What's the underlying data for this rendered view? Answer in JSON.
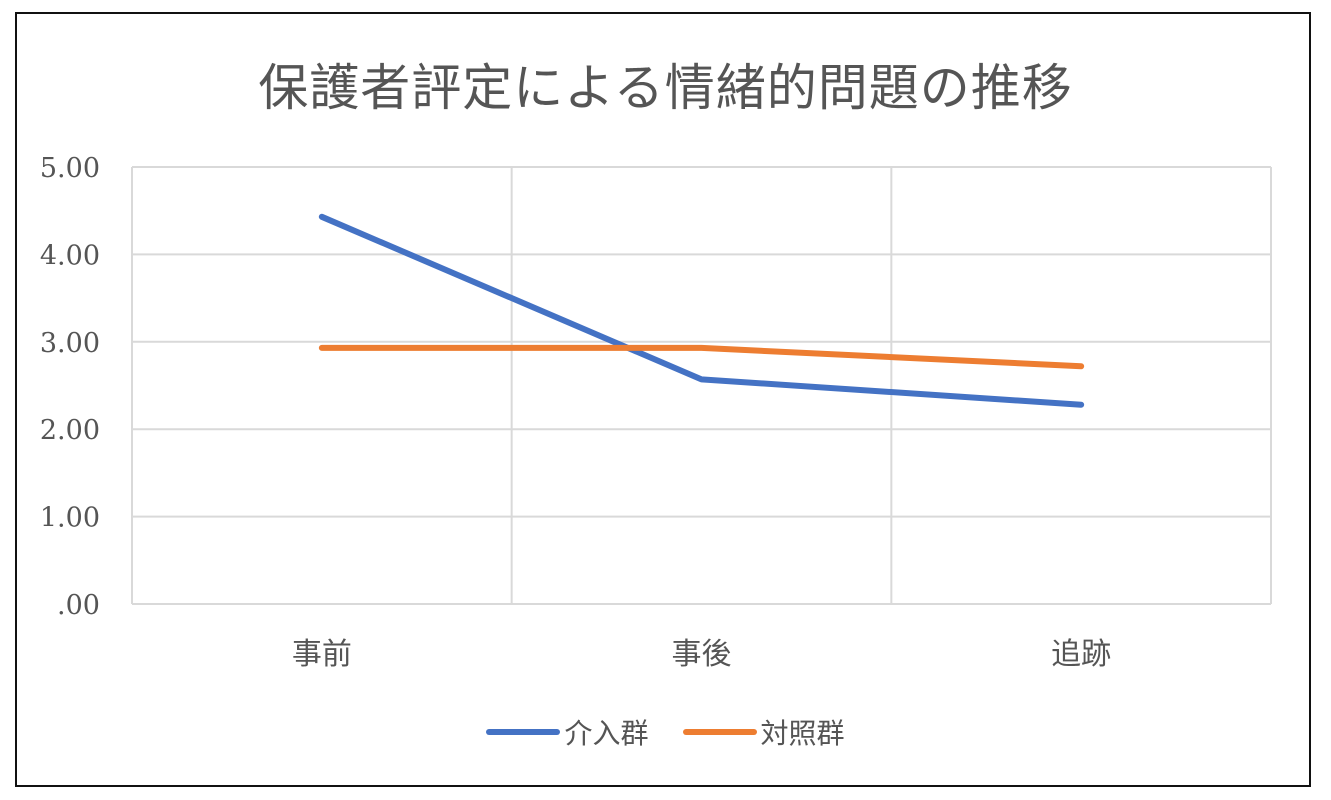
{
  "chart_data": {
    "type": "line",
    "title": "保護者評定による情緒的問題の推移",
    "categories": [
      "事前",
      "事後",
      "追跡"
    ],
    "series": [
      {
        "name": "介入群",
        "color": "#4472C4",
        "values": [
          4.43,
          2.57,
          2.28
        ]
      },
      {
        "name": "対照群",
        "color": "#ED7D31",
        "values": [
          2.93,
          2.93,
          2.72
        ]
      }
    ],
    "ylim": [
      0,
      5
    ],
    "y_ticks": [
      {
        "value": 0,
        "label": ".00"
      },
      {
        "value": 1,
        "label": "1.00"
      },
      {
        "value": 2,
        "label": "2.00"
      },
      {
        "value": 3,
        "label": "3.00"
      },
      {
        "value": 4,
        "label": "4.00"
      },
      {
        "value": 5,
        "label": "5.00"
      }
    ],
    "xlabel": "",
    "ylabel": "",
    "grid": true,
    "legend_position": "bottom"
  }
}
